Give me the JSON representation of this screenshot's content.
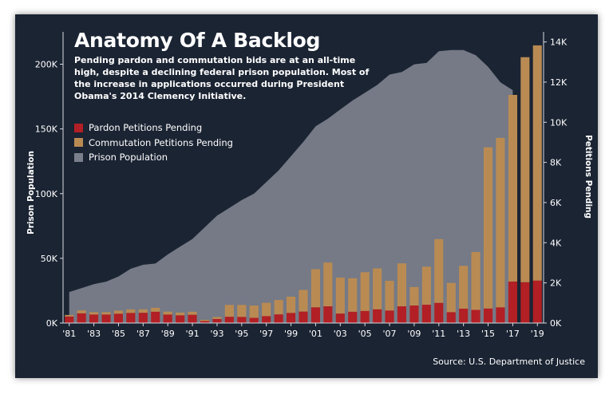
{
  "source": "Source: U.S. Department of Justice",
  "colors": {
    "background": "#1b2433",
    "pardon": "#b21f24",
    "commutation": "#b98b53",
    "prison": "#7a7f8b",
    "text": "#ffffff"
  },
  "chart_data": {
    "type": "bar",
    "title": "Anatomy Of A Backlog",
    "subtitle": "Pending pardon and commutation bids are at an all-time high, despite a declining federal prison population. Most of the increase in applications occurred during President Obama's 2014 Clemency Initiative.",
    "years": [
      1981,
      1982,
      1983,
      1984,
      1985,
      1986,
      1987,
      1988,
      1989,
      1990,
      1991,
      1992,
      1993,
      1994,
      1995,
      1996,
      1997,
      1998,
      1999,
      2000,
      2001,
      2002,
      2003,
      2004,
      2005,
      2006,
      2007,
      2008,
      2009,
      2010,
      2011,
      2012,
      2013,
      2014,
      2015,
      2016,
      2017,
      2018,
      2019
    ],
    "x_tick_labels": [
      "'81",
      "'83",
      "'85",
      "'87",
      "'89",
      "'91",
      "'93",
      "'95",
      "'97",
      "'99",
      "'01",
      "'03",
      "'05",
      "'07",
      "'09",
      "'11",
      "'13",
      "'15",
      "'17",
      "'19"
    ],
    "x_tick_years": [
      1981,
      1983,
      1985,
      1987,
      1989,
      1991,
      1993,
      1995,
      1997,
      1999,
      2001,
      2003,
      2005,
      2007,
      2009,
      2011,
      2013,
      2015,
      2017,
      2019
    ],
    "series": [
      {
        "name": "Pardon Petitions Pending",
        "axis": "right",
        "values": [
          320,
          480,
          420,
          420,
          460,
          500,
          510,
          560,
          420,
          380,
          410,
          100,
          200,
          310,
          300,
          260,
          340,
          430,
          500,
          570,
          780,
          830,
          470,
          560,
          600,
          680,
          620,
          830,
          870,
          910,
          1000,
          540,
          710,
          650,
          720,
          780,
          2060,
          2030,
          2110
        ]
      },
      {
        "name": "Commutation Petitions Pending",
        "axis": "right",
        "values": [
          80,
          150,
          120,
          120,
          160,
          180,
          170,
          200,
          150,
          140,
          150,
          60,
          100,
          590,
          600,
          610,
          670,
          720,
          810,
          1080,
          1900,
          2180,
          1790,
          1670,
          1930,
          2040,
          1480,
          2140,
          920,
          1900,
          3180,
          1460,
          2140,
          2890,
          8030,
          8440,
          9300,
          11210,
          11720
        ]
      },
      {
        "name": "Prison Population",
        "axis": "left",
        "values": [
          24000,
          27000,
          30000,
          32000,
          36000,
          42000,
          45000,
          46000,
          53000,
          59000,
          65000,
          74000,
          83000,
          89000,
          95000,
          100000,
          109000,
          118000,
          129000,
          140000,
          152000,
          158000,
          165000,
          172000,
          178000,
          184000,
          192000,
          194000,
          200000,
          201000,
          210000,
          211000,
          211000,
          207000,
          198000,
          186000,
          180000,
          null,
          null
        ]
      }
    ],
    "ylabel": "Prison Population",
    "y2label": "Petitions Pending",
    "ylim": [
      0,
      225000
    ],
    "y2lim": [
      0,
      14500
    ],
    "y_ticks": [
      "0K",
      "50K",
      "100K",
      "150K",
      "200K"
    ],
    "y_tick_values": [
      0,
      50000,
      100000,
      150000,
      200000
    ],
    "y2_ticks": [
      "0K",
      "2K",
      "4K",
      "6K",
      "8K",
      "10K",
      "12K",
      "14K"
    ],
    "y2_tick_values": [
      0,
      2000,
      4000,
      6000,
      8000,
      10000,
      12000,
      14000
    ],
    "legend_position": "top-left",
    "grid": false
  }
}
